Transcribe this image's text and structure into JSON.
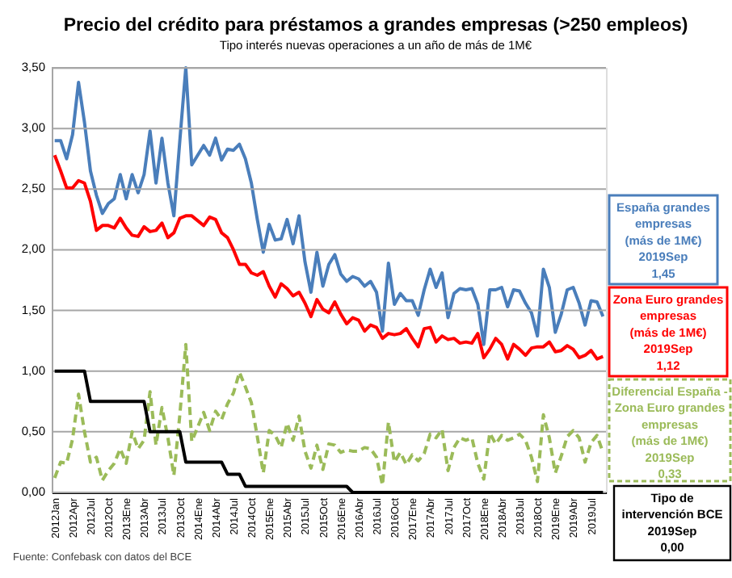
{
  "chart_data": {
    "type": "line",
    "title": "Precio del crédito para préstamos a grandes empresas (>250 empleos)",
    "subtitle": "Tipo interés nuevas operaciones a un año de más de 1M€",
    "categories": [
      "2012Jan",
      null,
      null,
      "2012Apr",
      null,
      null,
      "2012Jul",
      null,
      null,
      "2012Oct",
      null,
      null,
      "2013Ene",
      null,
      null,
      "2013Abr",
      null,
      null,
      "2013Jul",
      null,
      null,
      "2013Oct",
      null,
      null,
      "2014Ene",
      null,
      null,
      "2014Abr",
      null,
      null,
      "2014Jul",
      null,
      null,
      "2014Oct",
      null,
      null,
      "2015Ene",
      null,
      null,
      "2015Abr",
      null,
      null,
      "2015Jul",
      null,
      null,
      "2015Oct",
      null,
      null,
      "2016Ene",
      null,
      null,
      "2016Abr",
      null,
      null,
      "2016Jul",
      null,
      null,
      "2016Oct",
      null,
      null,
      "2017Ene",
      null,
      null,
      "2017Abr",
      null,
      null,
      "2017Jul",
      null,
      null,
      "2017Oct",
      null,
      null,
      "2018Ene",
      null,
      null,
      "2018Abr",
      null,
      null,
      "2018Jul",
      null,
      null,
      "2018Oct",
      null,
      null,
      "2019Ene",
      null,
      null,
      "2019Abr",
      null,
      null,
      "2019Jul",
      null,
      null
    ],
    "series": [
      {
        "name": "España grandes empresas (más de 1M€)",
        "color": "#4a7ebb",
        "values": [
          2.9,
          2.9,
          2.75,
          2.95,
          3.38,
          3.05,
          2.65,
          2.45,
          2.3,
          2.38,
          2.42,
          2.62,
          2.42,
          2.62,
          2.47,
          2.62,
          2.98,
          2.55,
          2.92,
          2.55,
          2.28,
          2.9,
          3.5,
          2.7,
          2.78,
          2.86,
          2.78,
          2.92,
          2.74,
          2.83,
          2.82,
          2.87,
          2.75,
          2.55,
          2.25,
          1.98,
          2.21,
          2.08,
          2.09,
          2.25,
          2.05,
          2.28,
          1.9,
          1.65,
          1.98,
          1.7,
          1.88,
          1.96,
          1.8,
          1.74,
          1.78,
          1.76,
          1.7,
          1.74,
          1.65,
          1.33,
          1.89,
          1.55,
          1.64,
          1.58,
          1.58,
          1.46,
          1.67,
          1.84,
          1.69,
          1.81,
          1.44,
          1.64,
          1.68,
          1.67,
          1.68,
          1.55,
          1.22,
          1.67,
          1.67,
          1.69,
          1.53,
          1.67,
          1.66,
          1.56,
          1.48,
          1.29,
          1.84,
          1.69,
          1.32,
          1.47,
          1.67,
          1.69,
          1.56,
          1.38,
          1.58,
          1.57,
          1.45
        ]
      },
      {
        "name": "Zona Euro grandes empresas (más de 1M€)",
        "color": "#ff0000",
        "values": [
          2.78,
          2.65,
          2.51,
          2.51,
          2.57,
          2.55,
          2.4,
          2.16,
          2.2,
          2.2,
          2.18,
          2.26,
          2.18,
          2.12,
          2.11,
          2.19,
          2.15,
          2.16,
          2.22,
          2.1,
          2.14,
          2.26,
          2.28,
          2.28,
          2.24,
          2.2,
          2.27,
          2.25,
          2.14,
          2.1,
          2.0,
          1.88,
          1.88,
          1.81,
          1.79,
          1.82,
          1.7,
          1.61,
          1.72,
          1.68,
          1.62,
          1.65,
          1.56,
          1.45,
          1.59,
          1.51,
          1.48,
          1.57,
          1.47,
          1.39,
          1.44,
          1.42,
          1.33,
          1.38,
          1.36,
          1.27,
          1.31,
          1.3,
          1.31,
          1.35,
          1.27,
          1.2,
          1.35,
          1.36,
          1.24,
          1.29,
          1.26,
          1.27,
          1.23,
          1.24,
          1.23,
          1.31,
          1.11,
          1.18,
          1.27,
          1.22,
          1.1,
          1.22,
          1.18,
          1.13,
          1.19,
          1.2,
          1.2,
          1.24,
          1.16,
          1.17,
          1.21,
          1.18,
          1.11,
          1.13,
          1.17,
          1.1,
          1.12
        ]
      },
      {
        "name": "Diferencial España - Zona Euro grandes empresas (más de 1M€)",
        "color": "#9bbb59",
        "line_style": "dashed",
        "values": [
          0.12,
          0.25,
          0.24,
          0.44,
          0.81,
          0.5,
          0.25,
          0.29,
          0.1,
          0.18,
          0.24,
          0.36,
          0.24,
          0.5,
          0.36,
          0.43,
          0.83,
          0.39,
          0.7,
          0.45,
          0.14,
          0.64,
          1.22,
          0.42,
          0.54,
          0.66,
          0.51,
          0.67,
          0.6,
          0.73,
          0.82,
          0.99,
          0.87,
          0.74,
          0.46,
          0.16,
          0.51,
          0.47,
          0.37,
          0.57,
          0.43,
          0.63,
          0.34,
          0.2,
          0.39,
          0.19,
          0.4,
          0.39,
          0.33,
          0.35,
          0.34,
          0.34,
          0.37,
          0.36,
          0.29,
          0.06,
          0.58,
          0.25,
          0.33,
          0.23,
          0.31,
          0.26,
          0.32,
          0.48,
          0.45,
          0.52,
          0.18,
          0.37,
          0.45,
          0.43,
          0.45,
          0.24,
          0.11,
          0.49,
          0.4,
          0.47,
          0.43,
          0.45,
          0.48,
          0.43,
          0.29,
          0.09,
          0.64,
          0.45,
          0.16,
          0.3,
          0.46,
          0.51,
          0.45,
          0.25,
          0.41,
          0.47,
          0.33
        ]
      },
      {
        "name": "Tipo de intervención BCE",
        "color": "#000000",
        "values": [
          1.0,
          1.0,
          1.0,
          1.0,
          1.0,
          1.0,
          0.75,
          0.75,
          0.75,
          0.75,
          0.75,
          0.75,
          0.75,
          0.75,
          0.75,
          0.75,
          0.5,
          0.5,
          0.5,
          0.5,
          0.5,
          0.5,
          0.25,
          0.25,
          0.25,
          0.25,
          0.25,
          0.25,
          0.25,
          0.15,
          0.15,
          0.15,
          0.05,
          0.05,
          0.05,
          0.05,
          0.05,
          0.05,
          0.05,
          0.05,
          0.05,
          0.05,
          0.05,
          0.05,
          0.05,
          0.05,
          0.05,
          0.05,
          0.05,
          0.05,
          0.0,
          0.0,
          0.0,
          0.0,
          0.0,
          0.0,
          0.0,
          0.0,
          0.0,
          0.0,
          0.0,
          0.0,
          0.0,
          0.0,
          0.0,
          0.0,
          0.0,
          0.0,
          0.0,
          0.0,
          0.0,
          0.0,
          0.0,
          0.0,
          0.0,
          0.0,
          0.0,
          0.0,
          0.0,
          0.0,
          0.0,
          0.0,
          0.0,
          0.0,
          0.0,
          0.0,
          0.0,
          0.0,
          0.0,
          0.0,
          0.0,
          0.0,
          0.0
        ]
      }
    ],
    "annotations": [
      "2019Sep 1,45",
      "2019Sep 1,12",
      "2019Sep 0,33",
      "2019Sep 0,00",
      "Fuente: Confebask con datos del BCE"
    ],
    "ylim": [
      0,
      3.5
    ],
    "yticks": [
      {
        "value": 0,
        "label": "0,00"
      },
      {
        "value": 0.5,
        "label": "0,50"
      },
      {
        "value": 1,
        "label": "1,00"
      },
      {
        "value": 1.5,
        "label": "1,50"
      },
      {
        "value": 2,
        "label": "2,00"
      },
      {
        "value": 2.5,
        "label": "2,50"
      },
      {
        "value": 3,
        "label": "3,00"
      },
      {
        "value": 3.5,
        "label": "3,50"
      }
    ],
    "grid": "y",
    "legend": "right",
    "marker": "none",
    "line_style": "solid"
  }
}
